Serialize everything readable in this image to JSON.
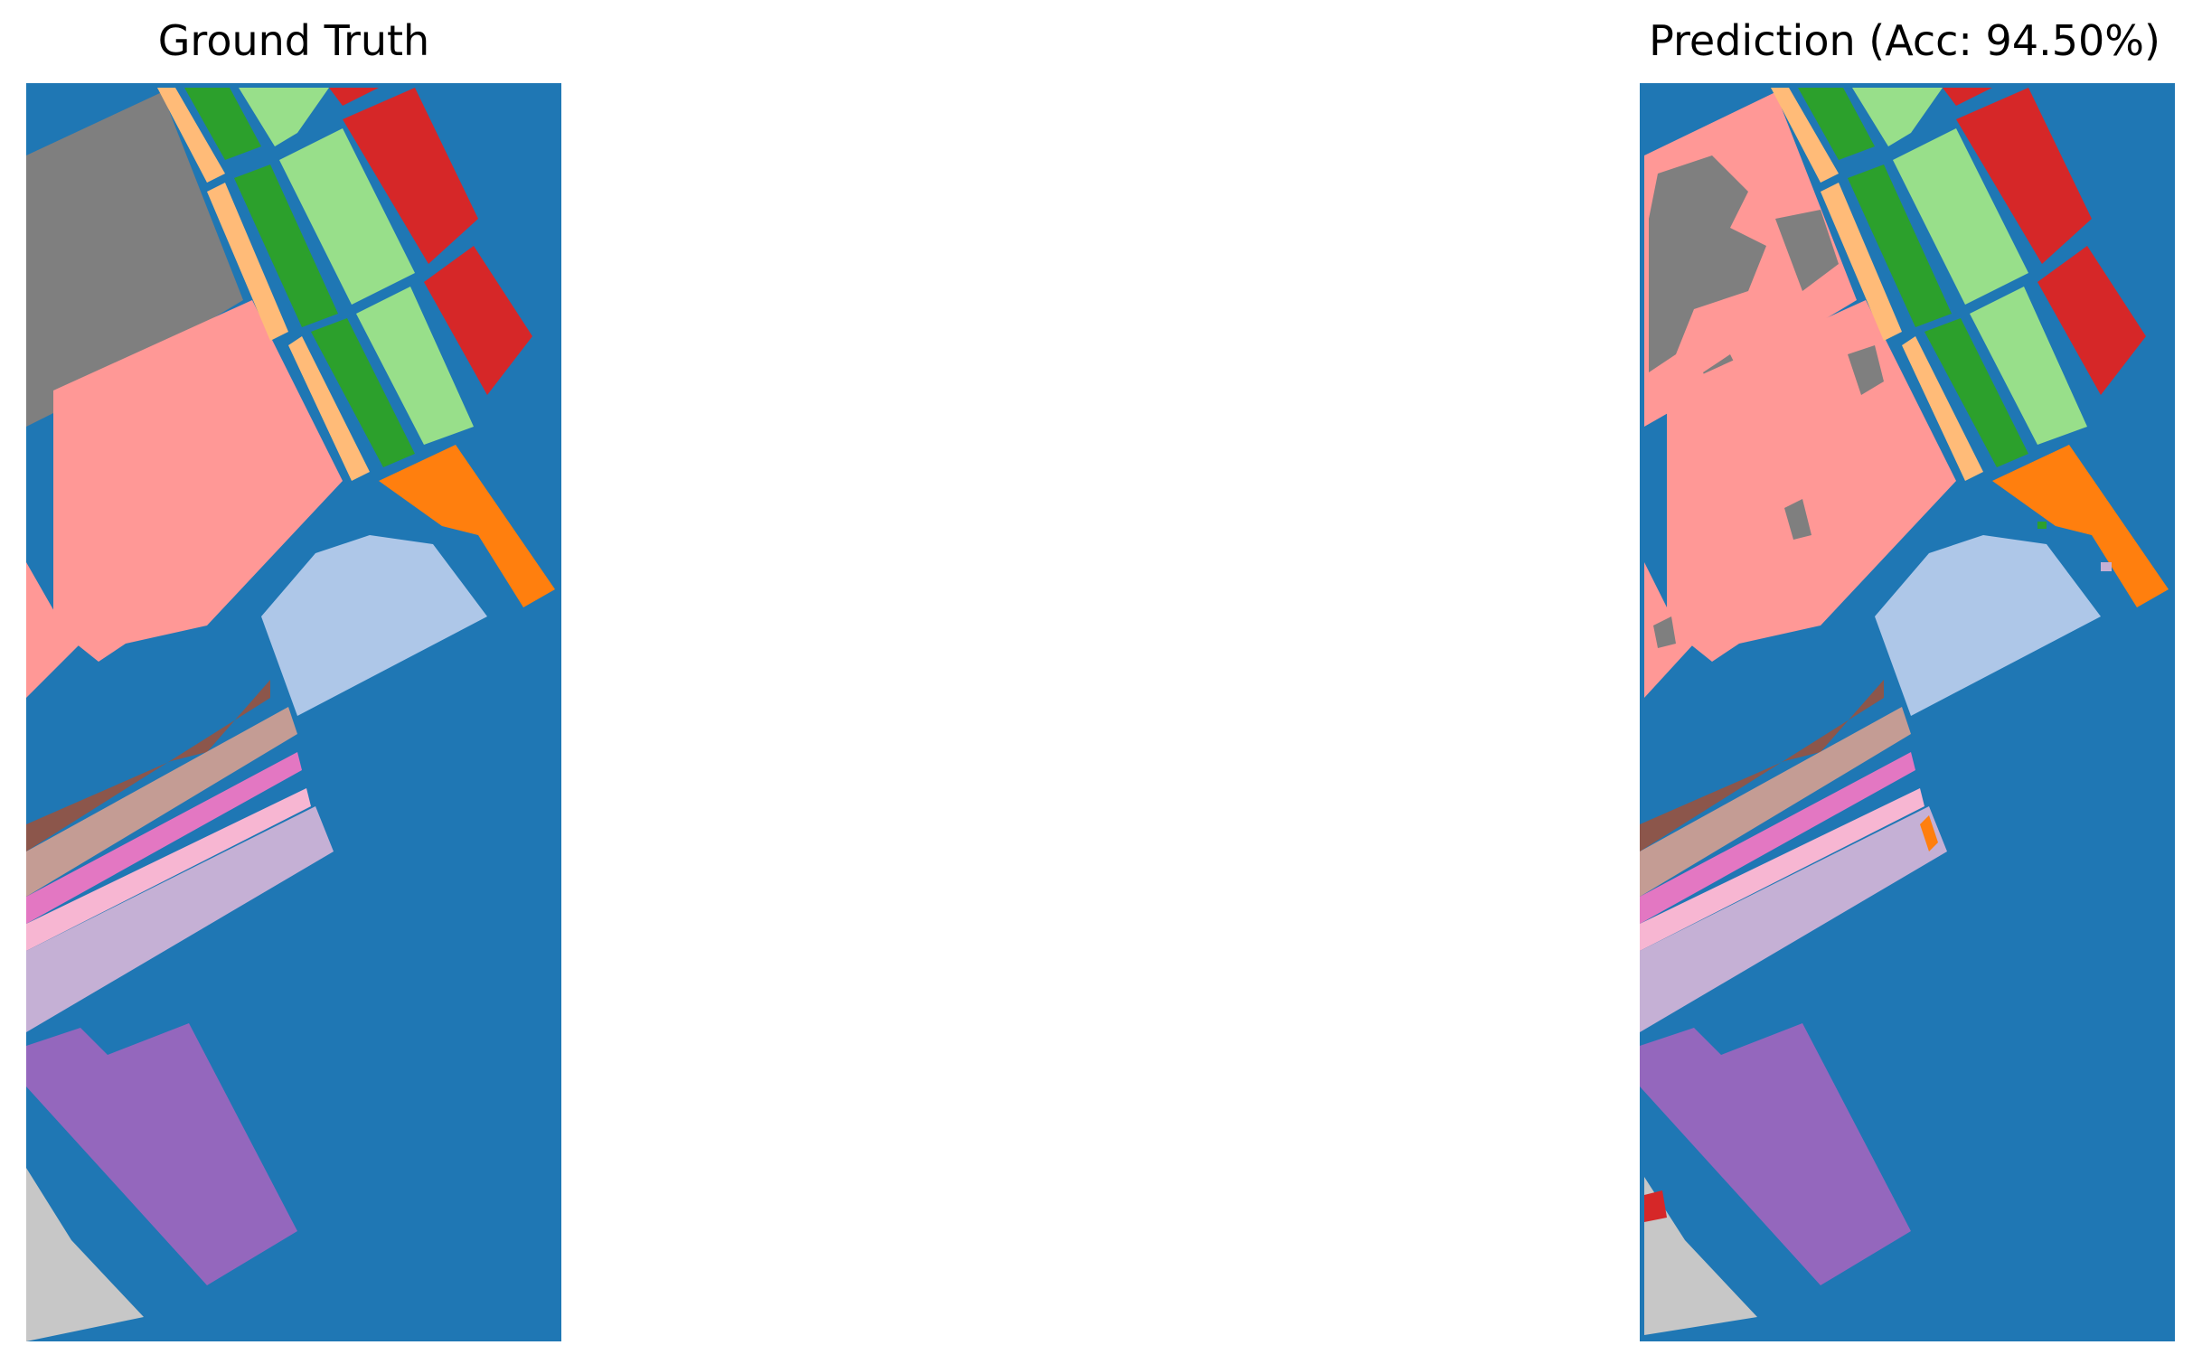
{
  "panels": [
    {
      "title": "Ground Truth"
    },
    {
      "title": "Prediction (Acc: 94.50%)"
    }
  ],
  "colors": {
    "background": "#1f77b4",
    "gray": "#7f7f7f",
    "pink_light": "#ff9896",
    "orange_light": "#ffbb78",
    "green": "#2ca02c",
    "green_light": "#98df8a",
    "red": "#d62728",
    "orange": "#ff7f0e",
    "blue_light": "#aec7e8",
    "brown": "#8c564b",
    "tan": "#c49c94",
    "pink": "#e377c2",
    "pink_pale": "#f7b6d2",
    "lavender": "#c5b0d5",
    "purple": "#9467bd",
    "silver": "#c7c7c7"
  }
}
